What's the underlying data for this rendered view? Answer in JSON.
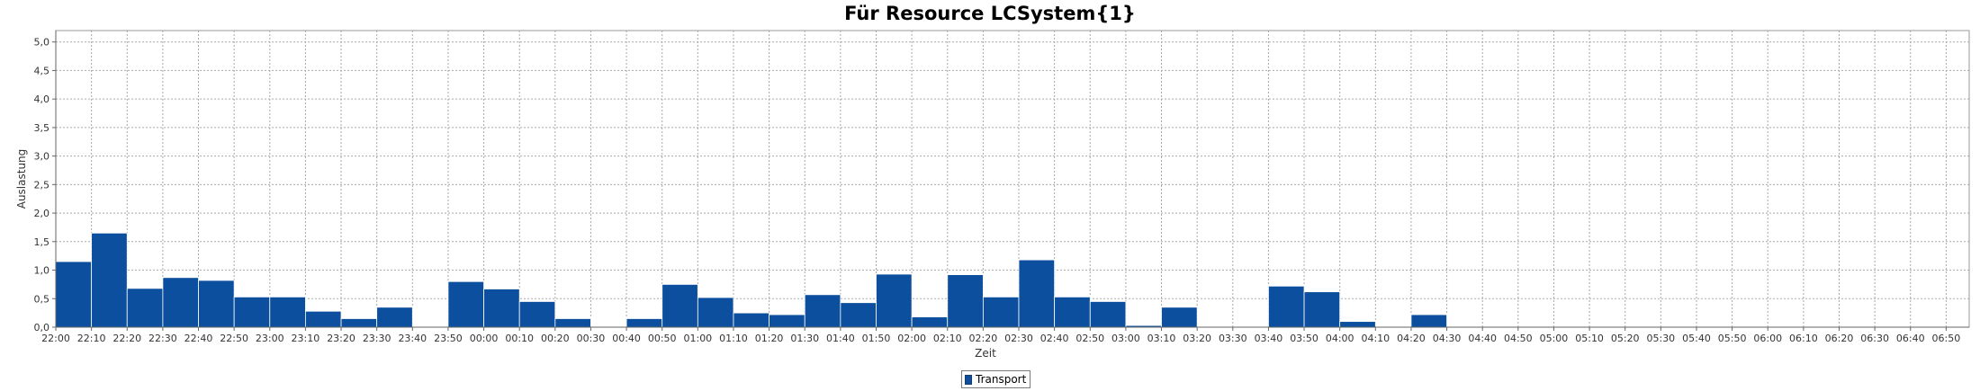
{
  "chart_data": {
    "type": "bar",
    "title": "Für Resource LCSystem{1}",
    "xlabel": "Zeit",
    "ylabel": "Auslastung",
    "ylim": [
      0,
      5.2
    ],
    "yticks": [
      "0,0",
      "0,5",
      "1,0",
      "1,5",
      "2,0",
      "2,5",
      "3,0",
      "3,5",
      "4,0",
      "4,5",
      "5,0"
    ],
    "grid": true,
    "legend_position": "bottom-center",
    "categories": [
      "22:00",
      "22:10",
      "22:20",
      "22:30",
      "22:40",
      "22:50",
      "23:00",
      "23:10",
      "23:20",
      "23:30",
      "23:40",
      "23:50",
      "00:00",
      "00:10",
      "00:20",
      "00:30",
      "00:40",
      "00:50",
      "01:00",
      "01:10",
      "01:20",
      "01:30",
      "01:40",
      "01:50",
      "02:00",
      "02:10",
      "02:20",
      "02:30",
      "02:40",
      "02:50",
      "03:00",
      "03:10",
      "03:20",
      "03:30",
      "03:40",
      "03:50",
      "04:00",
      "04:10",
      "04:20",
      "04:30",
      "04:40",
      "04:50",
      "05:00",
      "05:10",
      "05:20",
      "05:30",
      "05:40",
      "05:50",
      "06:00",
      "06:10",
      "06:20",
      "06:30",
      "06:40",
      "06:50"
    ],
    "series": [
      {
        "name": "Transport",
        "color": "#0b4f9e",
        "values": [
          1.15,
          1.65,
          0.68,
          0.87,
          0.82,
          0.53,
          0.53,
          0.28,
          0.15,
          0.35,
          0,
          0.8,
          0.67,
          0.45,
          0.15,
          0,
          0.15,
          0.75,
          0.52,
          0.25,
          0.22,
          0.57,
          0.43,
          0.93,
          0.18,
          0.92,
          0.53,
          1.18,
          0.53,
          0.45,
          0.03,
          0.35,
          0,
          0,
          0.72,
          0.62,
          0.1,
          0,
          0.22,
          0,
          0,
          0,
          0,
          0,
          0,
          0,
          0,
          0,
          0,
          0,
          0,
          0,
          0,
          0
        ]
      }
    ]
  }
}
